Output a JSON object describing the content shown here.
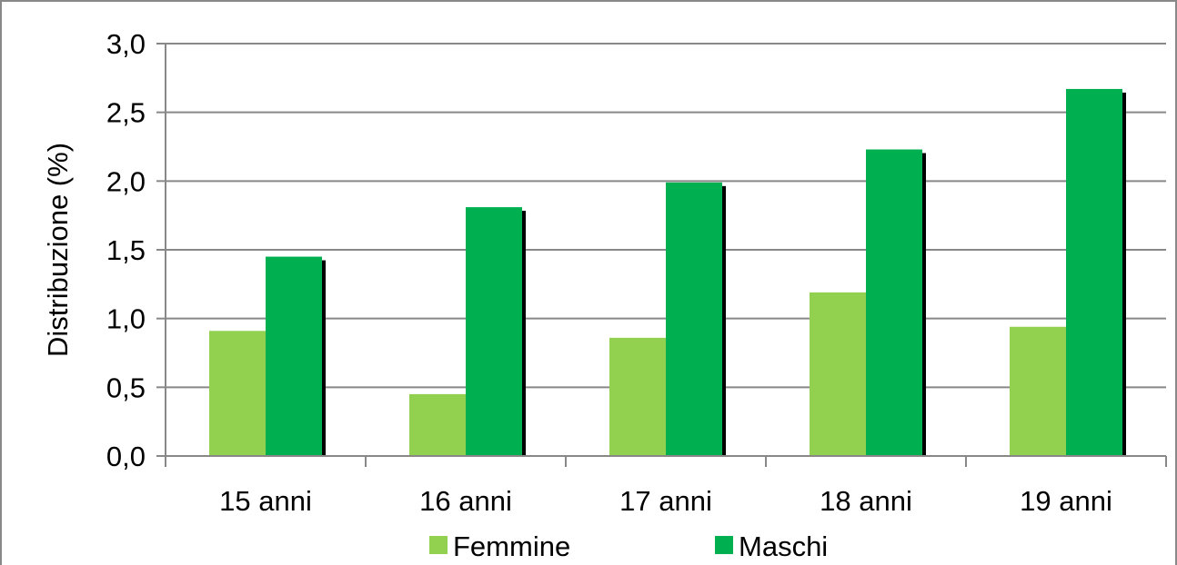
{
  "chart_data": {
    "type": "bar",
    "title": "",
    "xlabel": "",
    "ylabel": "Distribuzione (%)",
    "categories": [
      "15 anni",
      "16 anni",
      "17 anni",
      "18 anni",
      "19 anni"
    ],
    "series": [
      {
        "name": "Femmine",
        "color": "#92d050",
        "values": [
          0.91,
          0.45,
          0.86,
          1.19,
          0.94
        ]
      },
      {
        "name": "Maschi",
        "color": "#00b050",
        "values": [
          1.45,
          1.81,
          1.99,
          2.23,
          2.67
        ]
      }
    ],
    "ylim": [
      0,
      3.0
    ],
    "yticks": [
      "0,0",
      "0,5",
      "1,0",
      "1,5",
      "2,0",
      "2,5",
      "3,0"
    ],
    "grid": true,
    "legend_position": "bottom"
  }
}
